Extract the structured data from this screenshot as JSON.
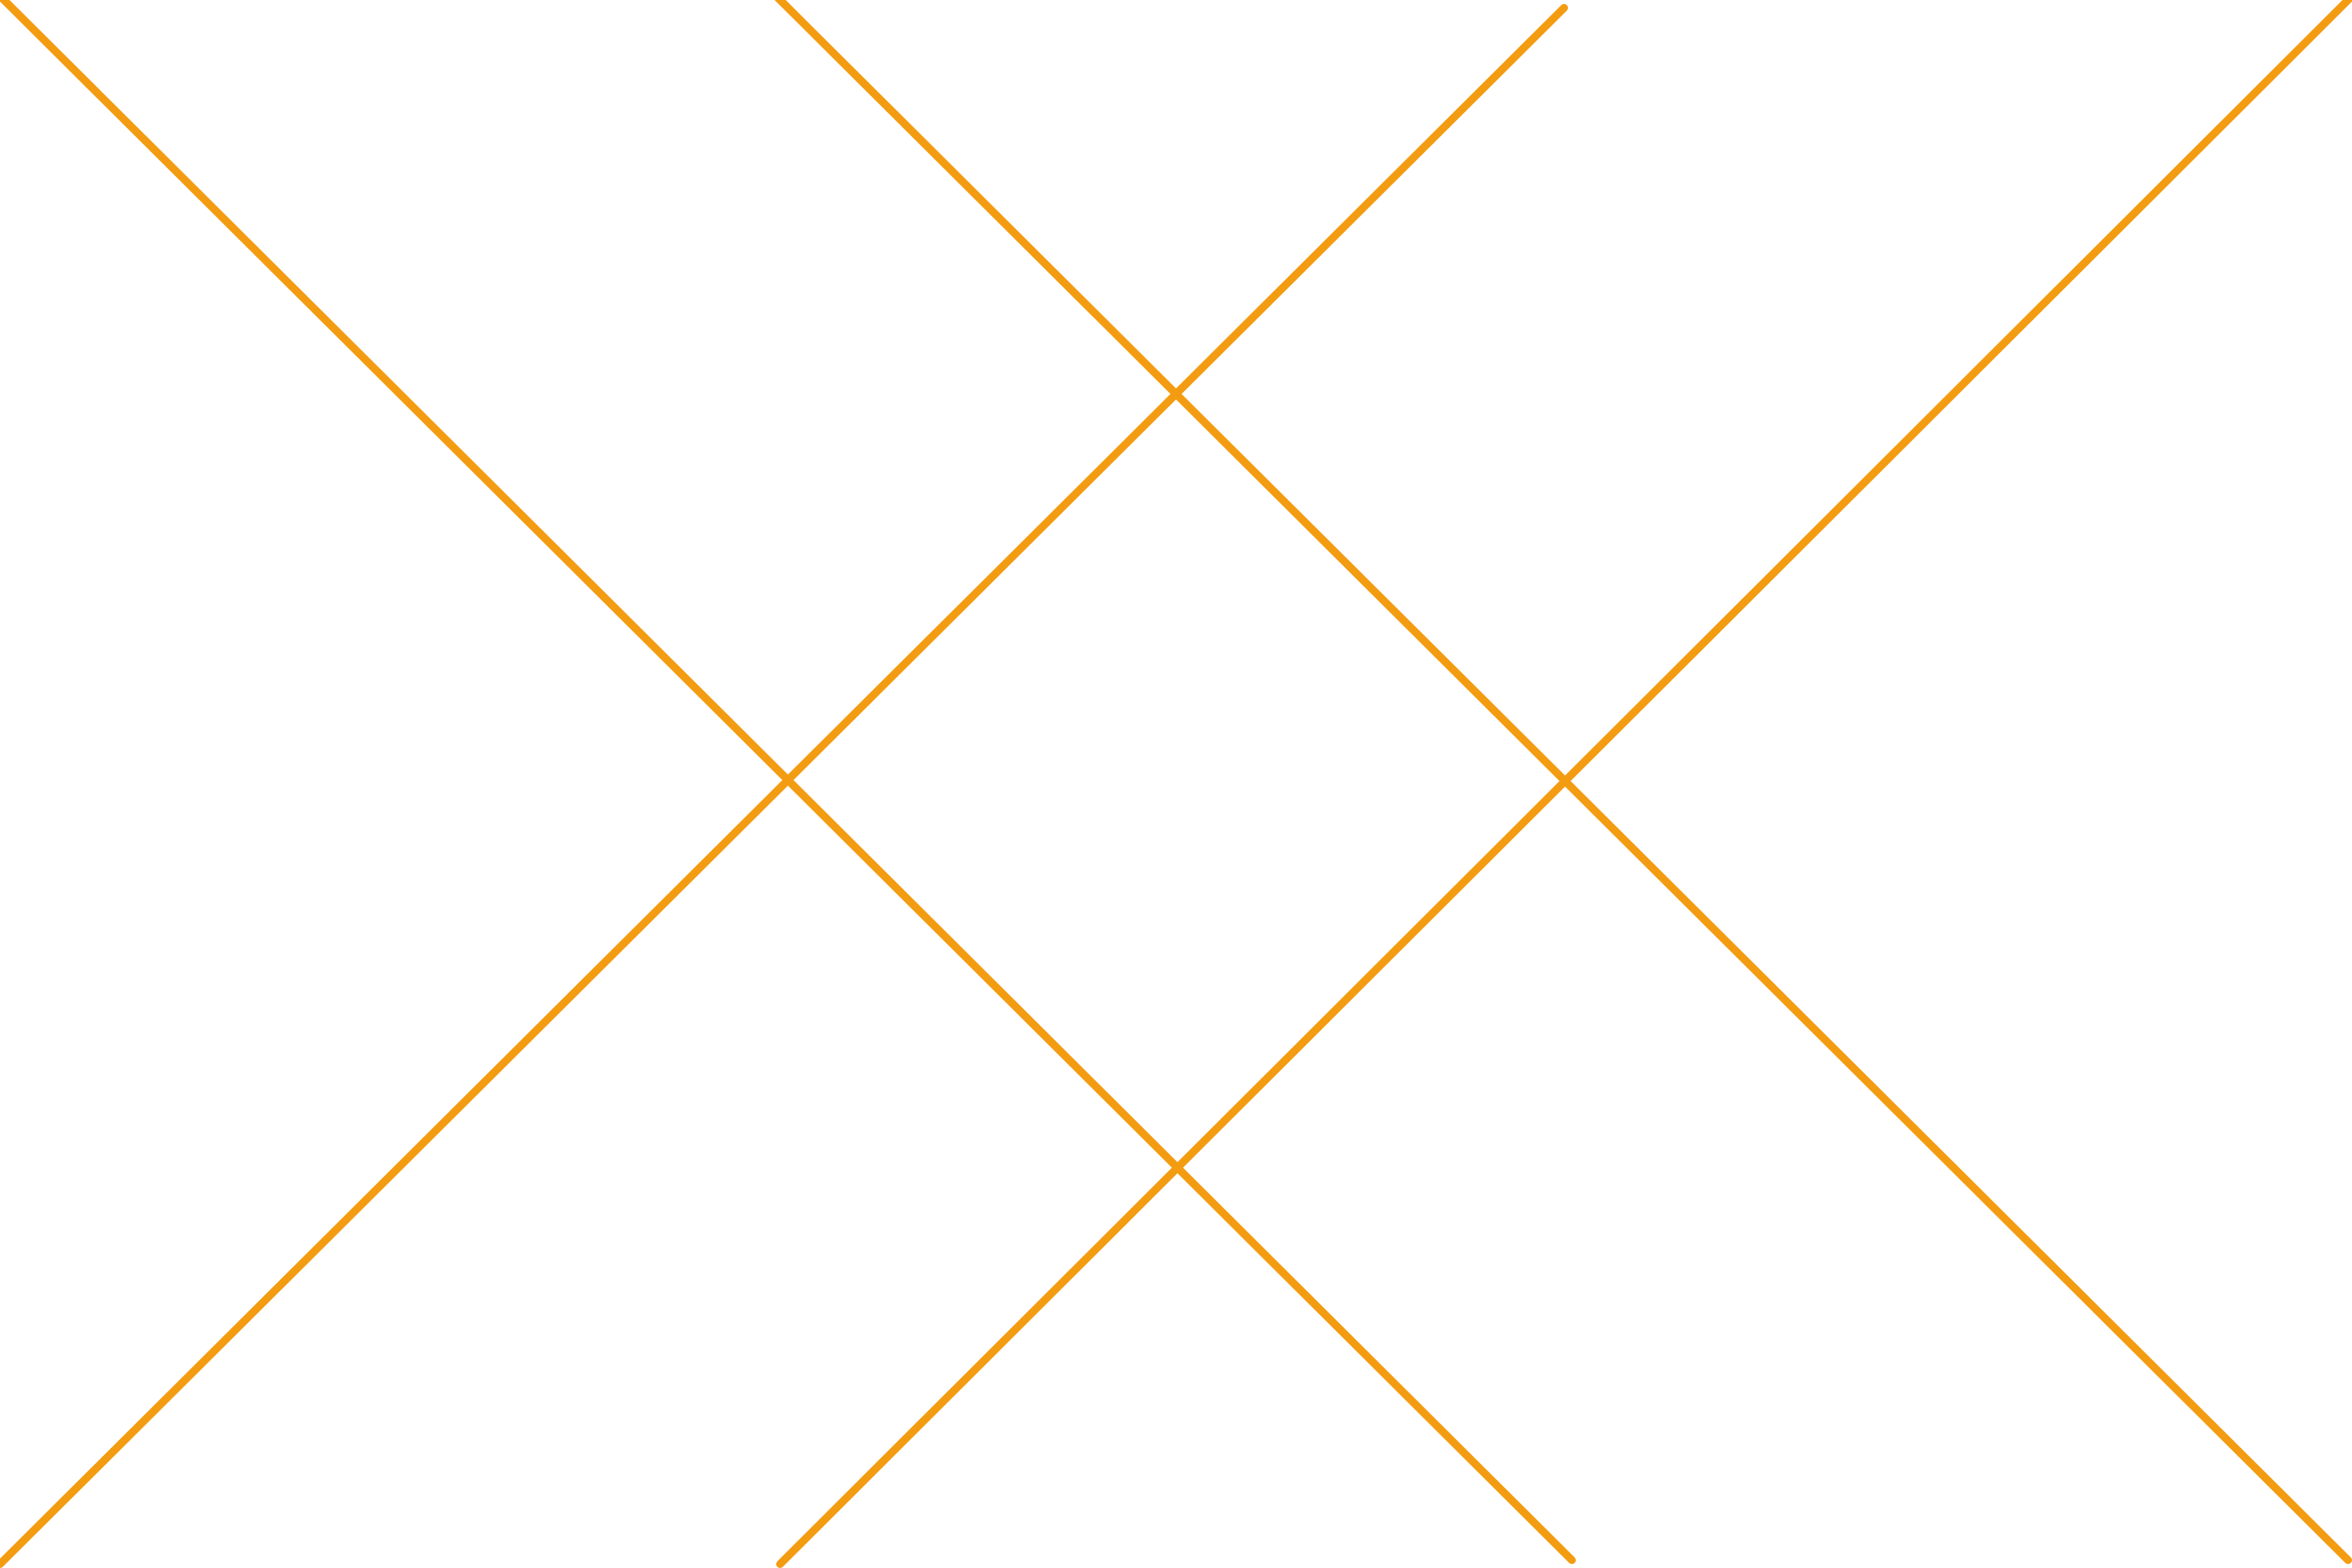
{
  "pattern": {
    "stroke_color": "#F39C12",
    "background_color": "#FFFFFF"
  }
}
